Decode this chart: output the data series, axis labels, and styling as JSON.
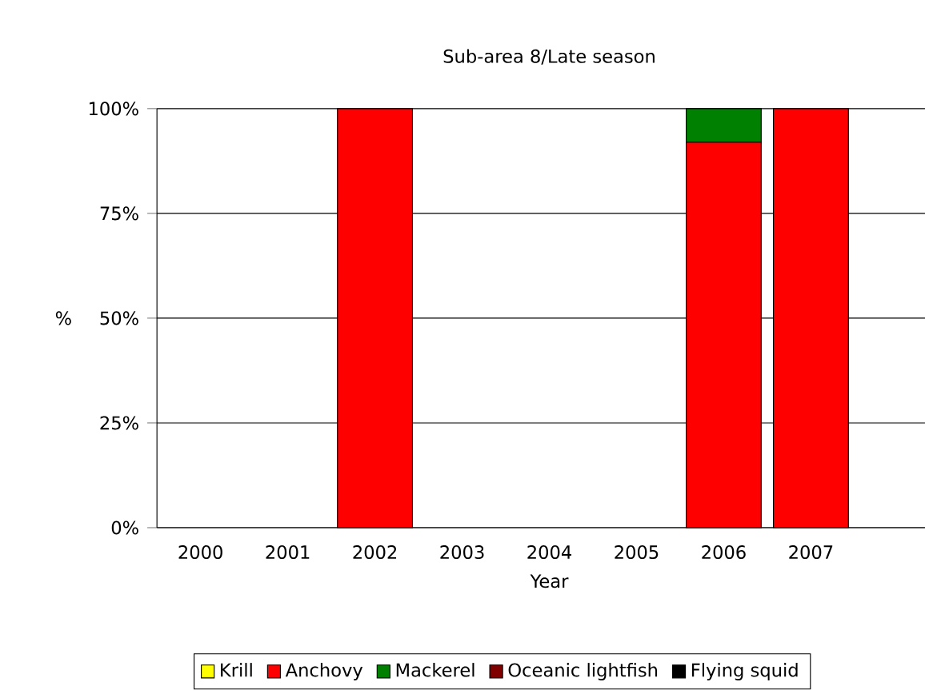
{
  "chart_data": {
    "type": "bar",
    "stacked": true,
    "title": "Sub-area 8/Late season",
    "xlabel": "Year",
    "ylabel": "%",
    "categories": [
      "2000",
      "2001",
      "2002",
      "2003",
      "2004",
      "2005",
      "2006",
      "2007",
      null
    ],
    "series": [
      {
        "name": "Krill",
        "color": "#ffff00",
        "values": [
          null,
          null,
          null,
          null,
          null,
          null,
          null,
          null,
          null
        ]
      },
      {
        "name": "Anchovy",
        "color": "#ff0000",
        "values": [
          null,
          null,
          100,
          null,
          null,
          null,
          92,
          100,
          null
        ]
      },
      {
        "name": "Mackerel",
        "color": "#008000",
        "values": [
          null,
          null,
          null,
          null,
          null,
          null,
          8,
          null,
          null
        ]
      },
      {
        "name": "Oceanic lightfish",
        "color": "#800000",
        "values": [
          null,
          null,
          null,
          null,
          null,
          null,
          null,
          null,
          null
        ]
      },
      {
        "name": "Flying squid",
        "color": "#000000",
        "values": [
          null,
          null,
          null,
          null,
          null,
          null,
          null,
          null,
          null
        ]
      }
    ],
    "ylim": [
      0,
      100
    ],
    "yticks": [
      {
        "value": 0,
        "label": "0%"
      },
      {
        "value": 25,
        "label": "25%"
      },
      {
        "value": 50,
        "label": "50%"
      },
      {
        "value": 75,
        "label": "75%"
      },
      {
        "value": 100,
        "label": "100%"
      }
    ],
    "grid": "y",
    "legend": "bottom"
  }
}
